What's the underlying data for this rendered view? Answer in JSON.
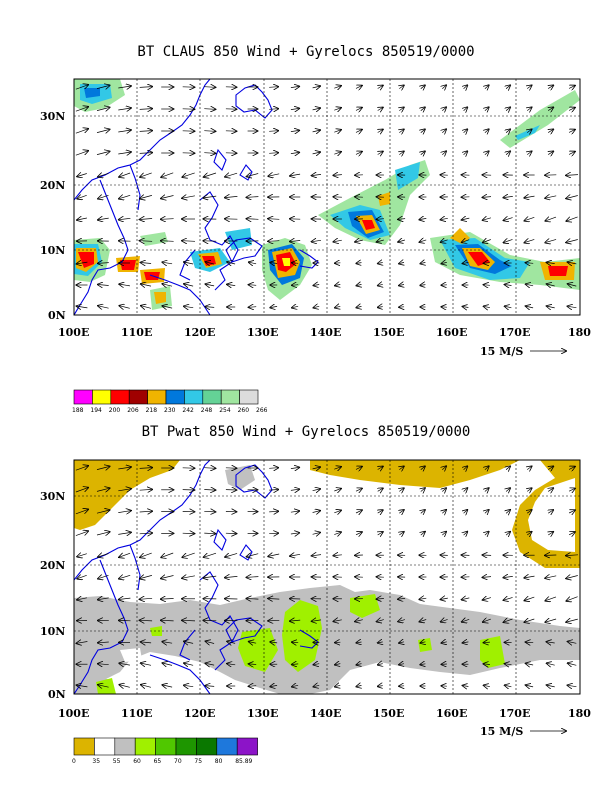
{
  "maps": [
    {
      "title": "BT CLAUS 850 Wind + Gyrelocs 850519/0000",
      "lat_labels": [
        "30N",
        "20N",
        "10N",
        "0N"
      ],
      "lon_labels": [
        "100E",
        "110E",
        "120E",
        "130E",
        "140E",
        "150E",
        "160E",
        "170E",
        "180"
      ],
      "vector_ref": "15 M/S",
      "legend": {
        "colors": [
          "#ff00ff",
          "#ffff00",
          "#ff0000",
          "#a00000",
          "#f0b400",
          "#0078dc",
          "#32c8e6",
          "#64d296",
          "#a0e6a0",
          "#dcdcdc"
        ],
        "labels": [
          "188",
          "194",
          "200",
          "206",
          "218",
          "230",
          "242",
          "248",
          "254",
          "260",
          "266"
        ]
      }
    },
    {
      "title": "BT Pwat 850 Wind + Gyrelocs 850519/0000",
      "lat_labels": [
        "30N",
        "20N",
        "10N",
        "0N"
      ],
      "lon_labels": [
        "100E",
        "110E",
        "120E",
        "130E",
        "140E",
        "150E",
        "160E",
        "170E",
        "180"
      ],
      "vector_ref": "15 M/S",
      "legend": {
        "colors": [
          "#dcb400",
          "#ffffff",
          "#c0c0c0",
          "#a0f000",
          "#50c800",
          "#1e9600",
          "#0a7800",
          "#1e78dc",
          "#8c14c8"
        ],
        "labels": [
          "0",
          "35",
          "55",
          "60",
          "65",
          "70",
          "75",
          "80",
          "85.89"
        ]
      }
    }
  ]
}
